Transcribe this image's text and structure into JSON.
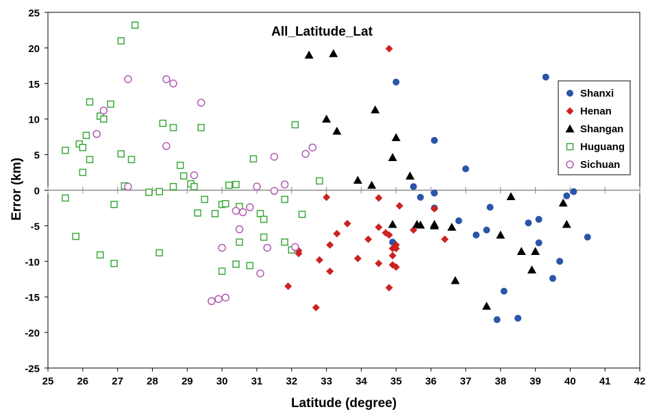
{
  "chart_data": {
    "type": "scatter",
    "title": "All_Latitude_Lat",
    "xlabel": "Latitude (degree)",
    "ylabel": "Error (km)",
    "xlim": [
      25,
      42
    ],
    "ylim": [
      -25,
      25
    ],
    "xticks": [
      25,
      26,
      27,
      28,
      29,
      30,
      31,
      32,
      33,
      34,
      35,
      36,
      37,
      38,
      39,
      40,
      41,
      42
    ],
    "yticks": [
      -25,
      -20,
      -15,
      -10,
      -5,
      0,
      5,
      10,
      15,
      20,
      25
    ],
    "grid": false,
    "legend_position": "right",
    "series": [
      {
        "name": "Shanxi",
        "marker": "circle-filled",
        "color": "#2a55a8",
        "points": [
          [
            34.9,
            -7.3
          ],
          [
            35.5,
            0.5
          ],
          [
            35.7,
            -1.0
          ],
          [
            36.1,
            -2.5
          ],
          [
            36.1,
            -0.4
          ],
          [
            36.1,
            7.0
          ],
          [
            35.0,
            15.2
          ],
          [
            36.8,
            -4.3
          ],
          [
            37.0,
            3.0
          ],
          [
            37.3,
            -6.3
          ],
          [
            37.6,
            -5.6
          ],
          [
            37.7,
            -2.4
          ],
          [
            37.9,
            -18.2
          ],
          [
            38.1,
            -14.2
          ],
          [
            38.5,
            -18.0
          ],
          [
            38.8,
            -4.6
          ],
          [
            39.1,
            -4.1
          ],
          [
            39.1,
            -7.4
          ],
          [
            39.3,
            15.9
          ],
          [
            39.5,
            -12.4
          ],
          [
            39.7,
            -10.0
          ],
          [
            39.9,
            -0.8
          ],
          [
            40.1,
            -0.2
          ],
          [
            40.5,
            -6.6
          ]
        ]
      },
      {
        "name": "Henan",
        "marker": "diamond-filled",
        "color": "#cc2222",
        "points": [
          [
            31.9,
            -13.5
          ],
          [
            32.2,
            -8.5
          ],
          [
            32.2,
            -8.9
          ],
          [
            32.7,
            -16.5
          ],
          [
            32.8,
            -9.8
          ],
          [
            33.0,
            -1.0
          ],
          [
            33.1,
            -7.7
          ],
          [
            33.1,
            -11.4
          ],
          [
            33.3,
            -6.1
          ],
          [
            33.6,
            -4.7
          ],
          [
            33.9,
            -9.6
          ],
          [
            34.2,
            -6.9
          ],
          [
            34.5,
            -1.1
          ],
          [
            34.5,
            -5.2
          ],
          [
            34.5,
            -10.3
          ],
          [
            34.7,
            -6.0
          ],
          [
            34.8,
            -6.3
          ],
          [
            34.8,
            -13.7
          ],
          [
            34.8,
            19.9
          ],
          [
            34.9,
            -8.2
          ],
          [
            34.9,
            -9.2
          ],
          [
            34.9,
            -10.5
          ],
          [
            35.0,
            -7.7
          ],
          [
            35.0,
            -8.2
          ],
          [
            35.0,
            -10.8
          ],
          [
            35.1,
            -2.2
          ],
          [
            35.5,
            -5.6
          ],
          [
            36.1,
            -2.6
          ],
          [
            36.4,
            -6.9
          ]
        ]
      },
      {
        "name": "Shangan",
        "marker": "triangle-filled",
        "color": "#000000",
        "points": [
          [
            32.5,
            19.0
          ],
          [
            33.0,
            10.0
          ],
          [
            33.2,
            19.2
          ],
          [
            33.3,
            8.3
          ],
          [
            33.9,
            1.4
          ],
          [
            34.3,
            0.7
          ],
          [
            34.4,
            11.3
          ],
          [
            34.9,
            4.6
          ],
          [
            34.9,
            -4.8
          ],
          [
            35.0,
            7.4
          ],
          [
            35.4,
            2.0
          ],
          [
            35.6,
            -4.8
          ],
          [
            35.7,
            -4.9
          ],
          [
            36.1,
            -4.8
          ],
          [
            36.1,
            -5.0
          ],
          [
            36.6,
            -5.2
          ],
          [
            36.7,
            -12.7
          ],
          [
            37.6,
            -16.3
          ],
          [
            38.0,
            -6.3
          ],
          [
            38.3,
            -0.9
          ],
          [
            38.6,
            -8.6
          ],
          [
            38.9,
            -11.2
          ],
          [
            39.0,
            -8.6
          ],
          [
            39.8,
            -1.8
          ],
          [
            39.9,
            -4.8
          ]
        ]
      },
      {
        "name": "Huguang",
        "marker": "square-open",
        "color": "#3aa83a",
        "points": [
          [
            25.5,
            5.6
          ],
          [
            25.5,
            -1.1
          ],
          [
            25.8,
            -6.5
          ],
          [
            25.9,
            6.5
          ],
          [
            26.0,
            2.5
          ],
          [
            26.0,
            6.0
          ],
          [
            26.1,
            7.7
          ],
          [
            26.2,
            12.4
          ],
          [
            26.2,
            4.3
          ],
          [
            26.5,
            10.4
          ],
          [
            26.5,
            -9.1
          ],
          [
            26.6,
            10.0
          ],
          [
            26.8,
            12.1
          ],
          [
            26.9,
            -2.0
          ],
          [
            26.9,
            -10.3
          ],
          [
            27.1,
            5.1
          ],
          [
            27.1,
            21.0
          ],
          [
            27.2,
            0.6
          ],
          [
            27.4,
            4.3
          ],
          [
            27.5,
            23.2
          ],
          [
            27.9,
            -0.3
          ],
          [
            28.2,
            -0.2
          ],
          [
            28.2,
            -8.8
          ],
          [
            28.3,
            9.4
          ],
          [
            28.6,
            8.8
          ],
          [
            28.6,
            0.5
          ],
          [
            28.8,
            3.5
          ],
          [
            28.9,
            2.0
          ],
          [
            29.1,
            0.9
          ],
          [
            29.2,
            0.5
          ],
          [
            29.3,
            -3.2
          ],
          [
            29.4,
            8.8
          ],
          [
            29.5,
            -1.3
          ],
          [
            29.8,
            -3.3
          ],
          [
            30.0,
            -2.0
          ],
          [
            30.0,
            -11.4
          ],
          [
            30.1,
            -1.9
          ],
          [
            30.2,
            0.7
          ],
          [
            30.4,
            0.8
          ],
          [
            30.4,
            -10.4
          ],
          [
            30.5,
            -2.3
          ],
          [
            30.5,
            -7.3
          ],
          [
            30.8,
            -10.6
          ],
          [
            30.9,
            4.4
          ],
          [
            31.1,
            -3.3
          ],
          [
            31.2,
            -4.1
          ],
          [
            31.2,
            -6.6
          ],
          [
            31.8,
            -1.3
          ],
          [
            31.8,
            -7.3
          ],
          [
            32.0,
            -8.4
          ],
          [
            32.1,
            9.2
          ],
          [
            32.3,
            -3.4
          ],
          [
            32.8,
            1.3
          ]
        ]
      },
      {
        "name": "Sichuan",
        "marker": "circle-open",
        "color": "#b05ab0",
        "points": [
          [
            26.4,
            7.9
          ],
          [
            26.6,
            11.2
          ],
          [
            27.3,
            15.6
          ],
          [
            27.3,
            0.5
          ],
          [
            28.4,
            6.2
          ],
          [
            28.4,
            15.6
          ],
          [
            28.6,
            15.0
          ],
          [
            29.2,
            2.1
          ],
          [
            29.4,
            12.3
          ],
          [
            29.7,
            -15.6
          ],
          [
            29.9,
            -15.3
          ],
          [
            30.0,
            -8.1
          ],
          [
            30.1,
            -15.1
          ],
          [
            30.4,
            -2.9
          ],
          [
            30.5,
            -5.5
          ],
          [
            30.6,
            -3.1
          ],
          [
            30.8,
            -2.4
          ],
          [
            31.0,
            0.5
          ],
          [
            31.1,
            -11.7
          ],
          [
            31.3,
            -8.1
          ],
          [
            31.5,
            -0.1
          ],
          [
            31.5,
            4.7
          ],
          [
            31.8,
            0.8
          ],
          [
            32.1,
            -8.0
          ],
          [
            32.4,
            5.1
          ],
          [
            32.6,
            6.0
          ]
        ]
      }
    ]
  }
}
